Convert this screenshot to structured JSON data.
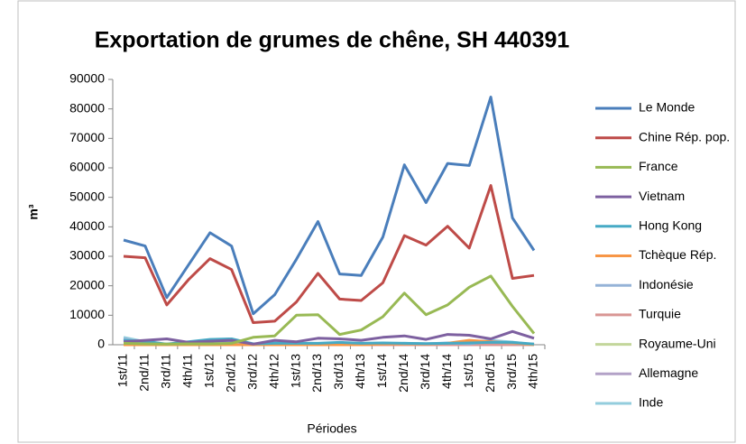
{
  "chart_data": {
    "type": "line",
    "title": "Exportation de grumes de chêne, SH 440391",
    "x_label": "Périodes",
    "y_label": "m³",
    "categories": [
      "1st/11",
      "2nd/11",
      "3rd/11",
      "4th/11",
      "1st/12",
      "2nd/12",
      "3rd/12",
      "4th/12",
      "1st/13",
      "2nd/13",
      "3rd/13",
      "4th/13",
      "1st/14",
      "2nd/14",
      "3rd/14",
      "4th/14",
      "1st/15",
      "2nd/15",
      "3rd/15",
      "4th/15"
    ],
    "series": [
      {
        "name": "Le Monde",
        "color": "#4a7ebb",
        "values": [
          35500,
          33500,
          16000,
          27000,
          38000,
          33500,
          10500,
          17000,
          29000,
          41800,
          24000,
          23500,
          36500,
          61000,
          48200,
          61500,
          60800,
          84000,
          43000,
          32000
        ]
      },
      {
        "name": "Chine Rép. pop.",
        "color": "#be4b48",
        "values": [
          30000,
          29500,
          13500,
          22000,
          29200,
          25500,
          7500,
          8000,
          14500,
          24200,
          15500,
          15000,
          21000,
          37000,
          33800,
          40200,
          32800,
          54000,
          22500,
          23500
        ]
      },
      {
        "name": "France",
        "color": "#98b954",
        "values": [
          500,
          300,
          200,
          300,
          300,
          500,
          2500,
          3000,
          10000,
          10200,
          3500,
          5000,
          9500,
          17500,
          10200,
          13500,
          19500,
          23300,
          13000,
          3800
        ]
      },
      {
        "name": "Vietnam",
        "color": "#7d60a0",
        "values": [
          1000,
          1500,
          2000,
          800,
          1200,
          1500,
          200,
          1500,
          1000,
          2200,
          2000,
          1500,
          2500,
          3000,
          1800,
          3500,
          3200,
          2000,
          4500,
          2200
        ]
      },
      {
        "name": "Hong Kong",
        "color": "#46aac5",
        "values": [
          1500,
          1200,
          200,
          1000,
          1800,
          2000,
          300,
          500,
          500,
          500,
          800,
          500,
          600,
          500,
          400,
          500,
          600,
          800,
          800,
          200
        ]
      },
      {
        "name": "Tchèque Rép.",
        "color": "#f79646",
        "values": [
          0,
          0,
          0,
          0,
          0,
          0,
          0,
          0,
          0,
          0,
          0,
          0,
          200,
          300,
          200,
          500,
          1500,
          1000,
          600,
          0
        ]
      },
      {
        "name": "Indonésie",
        "color": "#95b3d7",
        "values": [
          2000,
          500,
          0,
          300,
          500,
          1000,
          0,
          500,
          300,
          0,
          200,
          300,
          500,
          200,
          300,
          600,
          300,
          1200,
          500,
          0
        ]
      },
      {
        "name": "Turquie",
        "color": "#d99694",
        "values": [
          0,
          0,
          0,
          0,
          0,
          0,
          0,
          0,
          0,
          0,
          0,
          0,
          0,
          0,
          0,
          0,
          0,
          0,
          0,
          0
        ]
      },
      {
        "name": "Royaume-Uni",
        "color": "#c3d69b",
        "values": [
          200,
          200,
          100,
          200,
          300,
          200,
          100,
          200,
          300,
          300,
          200,
          200,
          300,
          400,
          300,
          300,
          300,
          300,
          200,
          100
        ]
      },
      {
        "name": "Allemagne",
        "color": "#b3a2c7",
        "values": [
          300,
          300,
          200,
          300,
          300,
          300,
          200,
          300,
          300,
          300,
          300,
          300,
          300,
          300,
          300,
          300,
          300,
          300,
          300,
          200
        ]
      },
      {
        "name": "Inde",
        "color": "#93cddd",
        "values": [
          2500,
          1000,
          0,
          500,
          1500,
          1800,
          0,
          800,
          500,
          300,
          200,
          300,
          200,
          500,
          300,
          200,
          600,
          1500,
          900,
          0
        ]
      }
    ],
    "ylim": [
      0,
      90000
    ],
    "yticks": [
      0,
      10000,
      20000,
      30000,
      40000,
      50000,
      60000,
      70000,
      80000,
      90000
    ],
    "grid": false,
    "legend": "right"
  }
}
